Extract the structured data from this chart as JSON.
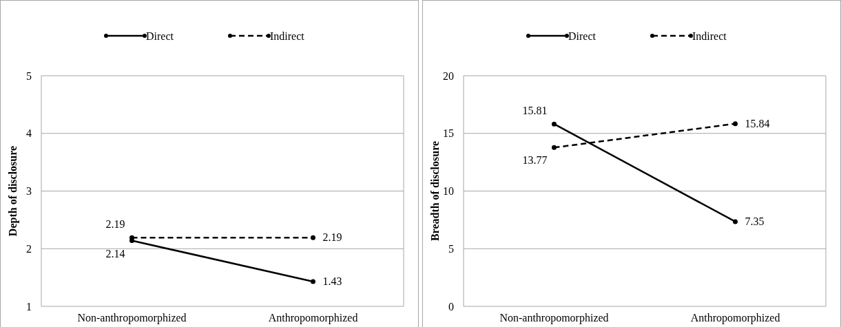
{
  "chart_data": [
    {
      "type": "line",
      "categories": [
        "Non-anthropomorphized",
        "Anthropomorphized"
      ],
      "ylabel": "Depth of disclosure",
      "ylim": [
        1,
        5
      ],
      "yticks": [
        1,
        2,
        3,
        4,
        5
      ],
      "grid": "y",
      "legend": "top",
      "marker": "circle",
      "data_labels": true,
      "series": [
        {
          "name": "Direct",
          "color": "#000000",
          "line_style": "solid",
          "values": [
            2.14,
            1.43
          ]
        },
        {
          "name": "Indirect",
          "color": "#000000",
          "line_style": "dashed",
          "values": [
            2.19,
            2.19
          ]
        }
      ]
    },
    {
      "type": "line",
      "categories": [
        "Non-anthropomorphized",
        "Anthropomorphized"
      ],
      "ylabel": "Breadth of disclosure",
      "ylim": [
        0,
        20
      ],
      "yticks": [
        0,
        5,
        10,
        15,
        20
      ],
      "grid": "y",
      "legend": "top",
      "marker": "circle",
      "data_labels": true,
      "series": [
        {
          "name": "Direct",
          "color": "#000000",
          "line_style": "solid",
          "values": [
            15.81,
            7.35
          ]
        },
        {
          "name": "Indirect",
          "color": "#000000",
          "line_style": "dashed",
          "values": [
            13.77,
            15.84
          ]
        }
      ]
    }
  ]
}
